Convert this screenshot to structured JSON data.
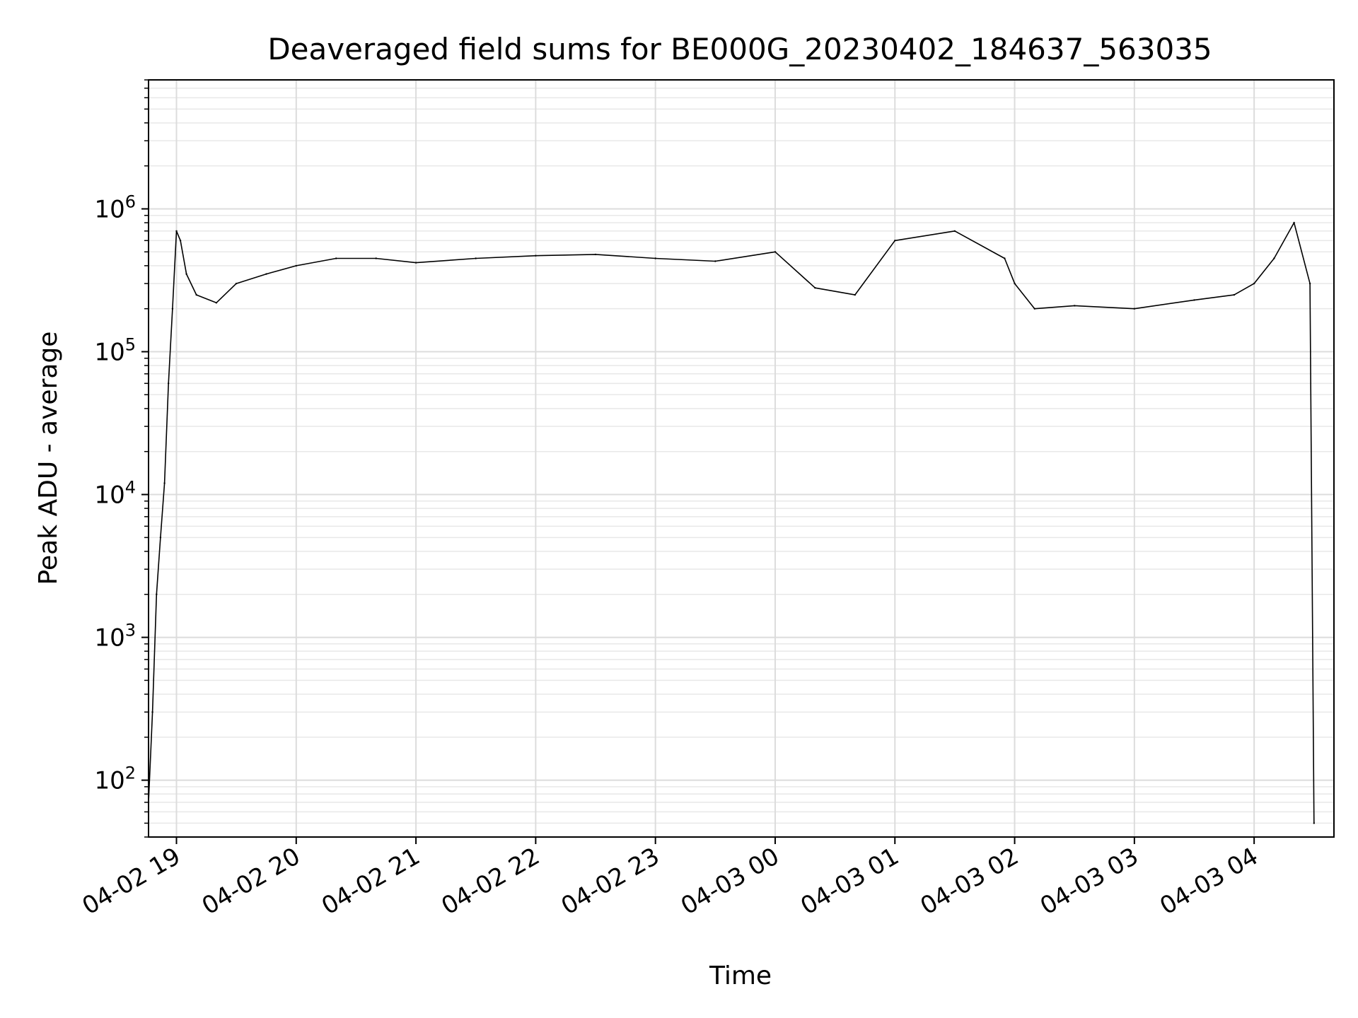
{
  "chart_data": {
    "type": "line",
    "title": "Deaveraged field sums for BE000G_20230402_184637_563035",
    "xlabel": "Time",
    "ylabel": "Peak ADU - average",
    "yscale": "log",
    "ylim": [
      40,
      8000000
    ],
    "xlim": [
      "04-02 18:46",
      "04-03 04:40"
    ],
    "grid": true,
    "line_color": "#000000",
    "x_ticks": [
      "04-02 19",
      "04-02 20",
      "04-02 21",
      "04-02 22",
      "04-02 23",
      "04-03 00",
      "04-03 01",
      "04-03 02",
      "04-03 03",
      "04-03 04"
    ],
    "y_ticks": [
      {
        "value": 100,
        "base": "10",
        "exp": "2"
      },
      {
        "value": 1000,
        "base": "10",
        "exp": "3"
      },
      {
        "value": 10000,
        "base": "10",
        "exp": "4"
      },
      {
        "value": 100000,
        "base": "10",
        "exp": "5"
      },
      {
        "value": 1000000,
        "base": "10",
        "exp": "6"
      }
    ],
    "series": [
      {
        "x": [
          "04-02 18:46",
          "04-02 18:48",
          "04-02 18:50",
          "04-02 18:52",
          "04-02 18:54",
          "04-02 18:56",
          "04-02 18:58",
          "04-02 19:00",
          "04-02 19:02",
          "04-02 19:05",
          "04-02 19:10",
          "04-02 19:20",
          "04-02 19:30",
          "04-02 19:45",
          "04-02 20:00",
          "04-02 20:20",
          "04-02 20:40",
          "04-02 21:00",
          "04-02 21:30",
          "04-02 22:00",
          "04-02 22:30",
          "04-02 23:00",
          "04-02 23:30",
          "04-03 00:00",
          "04-03 00:20",
          "04-03 00:40",
          "04-03 01:00",
          "04-03 01:30",
          "04-03 01:55",
          "04-03 02:00",
          "04-03 02:10",
          "04-03 02:30",
          "04-03 03:00",
          "04-03 03:30",
          "04-03 03:50",
          "04-03 04:00",
          "04-03 04:10",
          "04-03 04:20",
          "04-03 04:28",
          "04-03 04:30"
        ],
        "y": [
          70,
          300,
          2000,
          5000,
          12000,
          60000,
          200000,
          700000,
          600000,
          350000,
          250000,
          220000,
          300000,
          350000,
          400000,
          450000,
          450000,
          420000,
          450000,
          470000,
          480000,
          450000,
          430000,
          500000,
          280000,
          250000,
          600000,
          700000,
          450000,
          300000,
          200000,
          210000,
          200000,
          230000,
          250000,
          300000,
          450000,
          800000,
          300000,
          50
        ]
      }
    ]
  }
}
